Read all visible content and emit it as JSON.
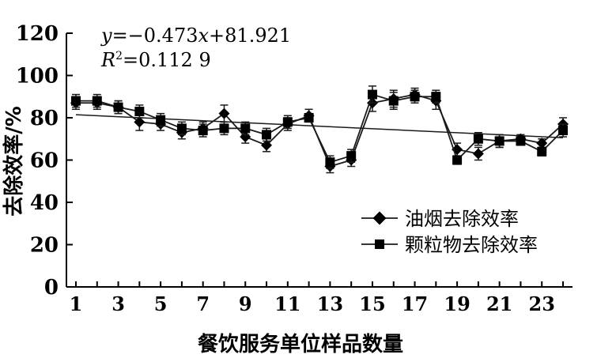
{
  "chart_data": {
    "type": "line",
    "xlabel": "餐饮服务单位样品数量",
    "ylabel": "去除效率/%",
    "ylim": [
      0,
      120
    ],
    "yticks": [
      0,
      20,
      40,
      60,
      80,
      100,
      120
    ],
    "xlim": [
      1,
      24
    ],
    "xticks": [
      1,
      3,
      5,
      7,
      9,
      11,
      13,
      15,
      17,
      19,
      21,
      23
    ],
    "x": [
      1,
      2,
      3,
      4,
      5,
      6,
      7,
      8,
      9,
      10,
      11,
      12,
      13,
      14,
      15,
      16,
      17,
      18,
      19,
      20,
      21,
      22,
      23,
      24
    ],
    "series": [
      {
        "name": "油烟去除效率",
        "marker": "diamond",
        "values": [
          87,
          87,
          85,
          78,
          77,
          73,
          75,
          82,
          71,
          67,
          77,
          81,
          57,
          60,
          87,
          89,
          91,
          88,
          65,
          63,
          69,
          70,
          68,
          77
        ],
        "errors": [
          3,
          3,
          3,
          4,
          3,
          3,
          3,
          4,
          3,
          3,
          3,
          3,
          3,
          3,
          4,
          4,
          3,
          4,
          3,
          3,
          3,
          2,
          2,
          3
        ]
      },
      {
        "name": "颗粒物去除效率",
        "marker": "square",
        "values": [
          88,
          88,
          85,
          83,
          79,
          75,
          74,
          75,
          75,
          72,
          78,
          80,
          59,
          62,
          91,
          88,
          90,
          90,
          60,
          70,
          69,
          69,
          64,
          74
        ],
        "errors": [
          3,
          3,
          3,
          3,
          3,
          3,
          3,
          3,
          3,
          3,
          3,
          2,
          3,
          3,
          4,
          4,
          3,
          3,
          2,
          3,
          3,
          2,
          2,
          3
        ]
      }
    ],
    "trendline": {
      "slope": -0.473,
      "intercept": 81.921
    },
    "annotations": {
      "equation": {
        "y": "y",
        "eq": "=−0.473",
        "x": "x",
        "rest": "+81.921"
      },
      "r2": {
        "R": "R",
        "sup": "2",
        "rest": "=0.112 9"
      }
    },
    "grid": false,
    "legend_position": "bottom-right",
    "colors": {
      "line": "#1a1a1a",
      "axis": "#000000"
    }
  }
}
